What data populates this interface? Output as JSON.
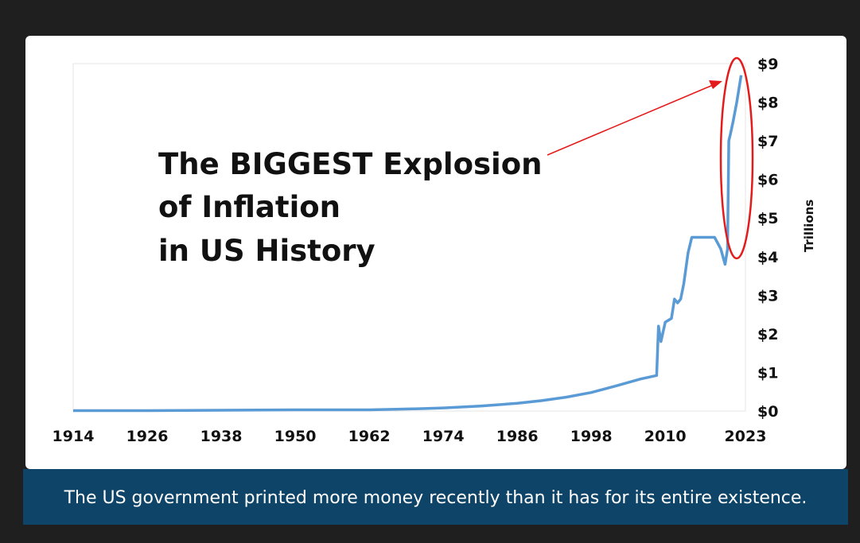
{
  "caption": "The US government printed more money recently than it has for its entire existence.",
  "chart_data": {
    "type": "line",
    "title": "",
    "xlabel": "",
    "ylabel": "Trillions",
    "x_ticks": [
      "1914",
      "1926",
      "1938",
      "1950",
      "1962",
      "1974",
      "1986",
      "1998",
      "2010",
      "2023"
    ],
    "y_ticks": [
      "$0",
      "$1",
      "$2",
      "$3",
      "$4",
      "$5",
      "$6",
      "$7",
      "$8",
      "$9"
    ],
    "xlim": [
      1914,
      2023
    ],
    "ylim": [
      0,
      9
    ],
    "grid": false,
    "series": [
      {
        "color": "#5b9bd5",
        "points": [
          [
            1914,
            0.01
          ],
          [
            1926,
            0.01
          ],
          [
            1938,
            0.02
          ],
          [
            1950,
            0.03
          ],
          [
            1962,
            0.03
          ],
          [
            1970,
            0.06
          ],
          [
            1974,
            0.08
          ],
          [
            1980,
            0.13
          ],
          [
            1986,
            0.2
          ],
          [
            1990,
            0.27
          ],
          [
            1994,
            0.36
          ],
          [
            1998,
            0.48
          ],
          [
            2002,
            0.65
          ],
          [
            2006,
            0.83
          ],
          [
            2008.6,
            0.92
          ],
          [
            2008.9,
            2.2
          ],
          [
            2009.3,
            1.8
          ],
          [
            2010,
            2.3
          ],
          [
            2011,
            2.4
          ],
          [
            2011.5,
            2.9
          ],
          [
            2012,
            2.8
          ],
          [
            2012.5,
            2.9
          ],
          [
            2013,
            3.3
          ],
          [
            2013.7,
            4.1
          ],
          [
            2014.3,
            4.5
          ],
          [
            2016,
            4.5
          ],
          [
            2018,
            4.5
          ],
          [
            2019,
            4.2
          ],
          [
            2019.7,
            3.8
          ],
          [
            2020.1,
            4.2
          ],
          [
            2020.3,
            7.0
          ],
          [
            2020.6,
            7.2
          ],
          [
            2021,
            7.5
          ],
          [
            2021.6,
            8.0
          ],
          [
            2022.3,
            8.7
          ]
        ]
      }
    ],
    "annotations": [
      {
        "lines": [
          "The BIGGEST Explosion",
          "of Inflation",
          "in US History"
        ]
      }
    ],
    "highlight": {
      "shape": "ellipse",
      "color": "#e41b1b"
    }
  }
}
